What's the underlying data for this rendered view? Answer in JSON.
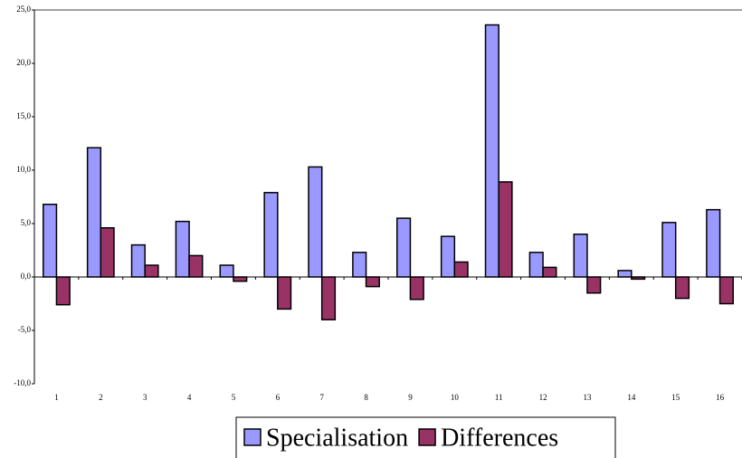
{
  "chart_data": {
    "type": "bar",
    "categories": [
      1,
      2,
      3,
      4,
      5,
      6,
      7,
      8,
      9,
      10,
      11,
      12,
      13,
      14,
      15,
      16
    ],
    "series": [
      {
        "name": "Specialisation",
        "color": "#9999ff",
        "values": [
          6.8,
          12.1,
          3.0,
          5.2,
          1.1,
          7.9,
          10.3,
          2.3,
          5.5,
          3.8,
          23.6,
          2.3,
          4.0,
          0.6,
          5.1,
          6.3
        ]
      },
      {
        "name": "Differences",
        "color": "#993366",
        "values": [
          -2.6,
          4.6,
          1.1,
          2.0,
          -0.4,
          -3.0,
          -4.0,
          -0.9,
          -2.1,
          1.4,
          8.9,
          0.9,
          -1.5,
          -0.2,
          -2.0,
          -2.5
        ]
      }
    ],
    "ylim": [
      -10,
      25
    ],
    "yticks": [
      {
        "value": -10,
        "label": "-10,0"
      },
      {
        "value": -5,
        "label": "-5,0"
      },
      {
        "value": 0,
        "label": "0,0"
      },
      {
        "value": 5,
        "label": "5,0"
      },
      {
        "value": 10,
        "label": "10,0"
      },
      {
        "value": 15,
        "label": "15,0"
      },
      {
        "value": 20,
        "label": "20,0"
      },
      {
        "value": 25,
        "label": "25,0"
      }
    ],
    "grid": false,
    "legend": "bottom"
  }
}
